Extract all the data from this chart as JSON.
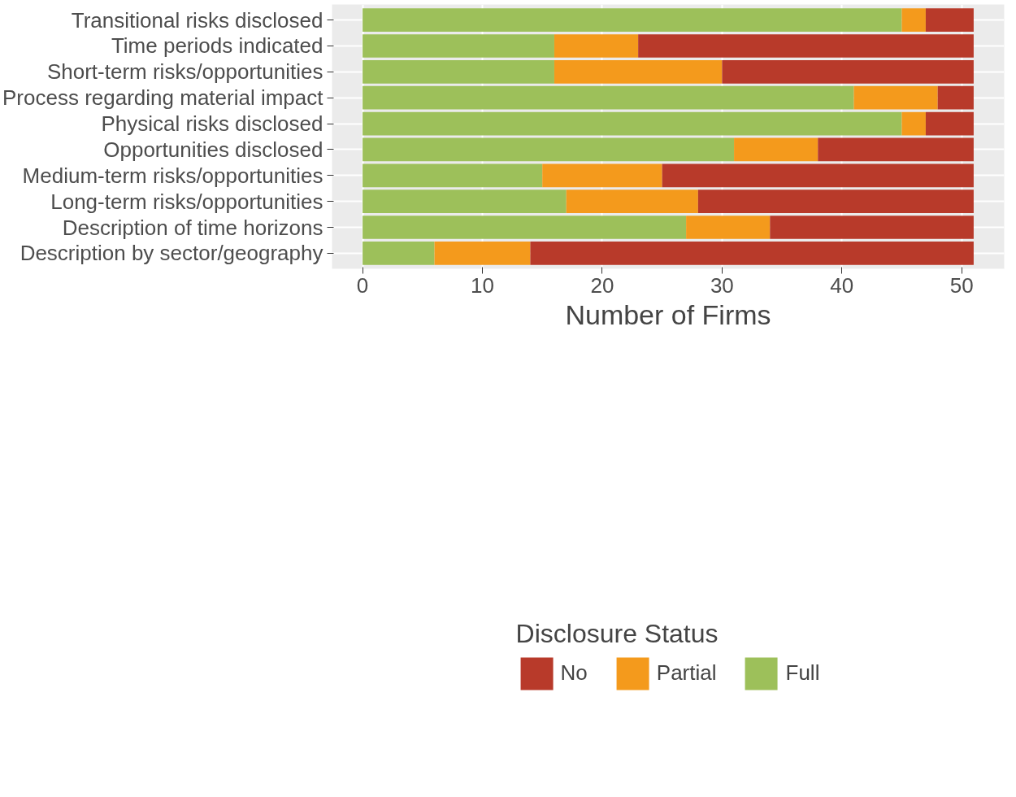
{
  "chart_data": {
    "type": "bar",
    "orientation": "horizontal",
    "stacked": true,
    "xlabel": "Number of Firms",
    "legend_title": "Disclosure Status",
    "legend": "bottom",
    "grid": true,
    "categories": [
      "Transitional risks disclosed",
      "Time periods indicated",
      "Short-term risks/opportunities",
      "Process regarding material impact",
      "Physical risks disclosed",
      "Opportunities disclosed",
      "Medium-term risks/opportunities",
      "Long-term risks/opportunities",
      "Description of time horizons",
      "Description by sector/geography"
    ],
    "series": [
      {
        "name": "Full",
        "color": "#9dc05a",
        "values": [
          45,
          16,
          16,
          41,
          45,
          31,
          15,
          17,
          27,
          6
        ]
      },
      {
        "name": "Partial",
        "color": "#f49a1c",
        "values": [
          2,
          7,
          14,
          7,
          2,
          7,
          10,
          11,
          7,
          8
        ]
      },
      {
        "name": "No",
        "color": "#b83a2a",
        "values": [
          4,
          28,
          21,
          3,
          4,
          13,
          26,
          23,
          17,
          37
        ]
      }
    ],
    "xlim": [
      -2.55,
      53.55
    ],
    "xticks": [
      0,
      10,
      20,
      30,
      40,
      50
    ]
  }
}
